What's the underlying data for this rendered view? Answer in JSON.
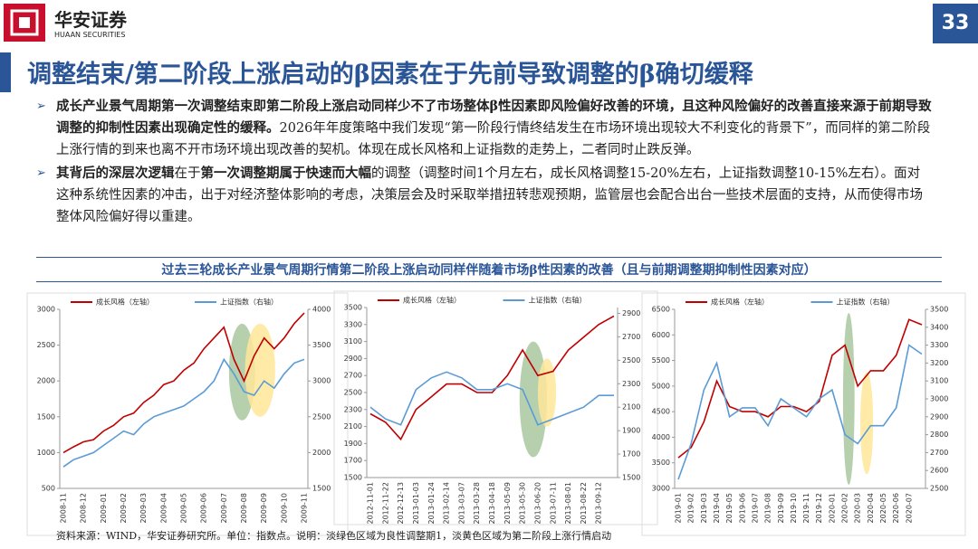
{
  "header": {
    "brand": "华安证券",
    "brand_en": "HUAAN SECURITIES",
    "page": "33"
  },
  "title": "调整结束/第二阶段上涨启动的β因素在于先前导致调整的β确切缓释",
  "bullets": [
    [
      {
        "text": "成长产业景气周期第一次调整结束即第二阶段上涨启动同样少不了市场整体β性因素即风险偏好改善的环境，且这种风险偏好的改善直接来源于前期导致调整的抑制性因素出现确定性的缓释。",
        "bold": true
      },
      {
        "text": "2026年年度策略中我们发现“第一阶段行情终结发生在市场环境出现较大不利变化的背景下”，而同样的第二阶段上涨行情的到来也离不开市场环境出现改善的契机。体现在成长风格和上证指数的走势上，二者同时止跌反弹。",
        "bold": false
      }
    ],
    [
      {
        "text": "其背后的深层次逻辑",
        "bold": true
      },
      {
        "text": "在于",
        "bold": false
      },
      {
        "text": "第一次调整期属于快速而大幅",
        "bold": true
      },
      {
        "text": "的调整（调整时间1个月左右，成长风格调整15-20%左右，上证指数调整10-15%左右）。面对这种系统性因素的冲击，出于对经济整体影响的考虑，决策层会及时采取举措扭转悲观预期，监管层也会配合出台一些技术层面的支持，从而使得市场整体风险偏好得以重建。",
        "bold": false
      }
    ]
  ],
  "caption": "过去三轮成长产业景气周期行情第二阶段上涨启动同样伴随着市场β性因素的改善（且与前期调整期抑制性因素对应）",
  "source": "资料来源：WIND，华安证券研究所。单位：指数点。说明：淡绿色区域为良性调整期1，淡黄色区域为第二阶段上涨行情启动",
  "chart_data": [
    {
      "type": "line",
      "categories": [
        "2008-11",
        null,
        "2008-12",
        null,
        "2009-01",
        null,
        "2009-02",
        null,
        "2009-03",
        null,
        "2009-04",
        null,
        "2009-05",
        null,
        "2009-06",
        null,
        "2009-07",
        null,
        "2009-08",
        null,
        "2009-09",
        null,
        "2009-10",
        null,
        "2009-11"
      ],
      "series": [
        {
          "name": "成长风格（左轴）",
          "color": "#c00000",
          "values": [
            1000,
            1080,
            1150,
            1180,
            1300,
            1380,
            1500,
            1550,
            1700,
            1800,
            1950,
            2000,
            2150,
            2250,
            2450,
            2600,
            2750,
            2300,
            2000,
            2350,
            2600,
            2450,
            2600,
            2800,
            2950
          ]
        },
        {
          "name": "上证指数（右轴）",
          "color": "#5b9bd5",
          "axis": "y2",
          "values": [
            1800,
            1900,
            1950,
            2000,
            2100,
            2200,
            2300,
            2250,
            2400,
            2500,
            2550,
            2600,
            2650,
            2750,
            2850,
            3000,
            3300,
            3100,
            2850,
            2800,
            3000,
            2900,
            3100,
            3250,
            3300
          ]
        }
      ],
      "ylim": [
        500,
        3000
      ],
      "yticks": [
        500,
        1000,
        1500,
        2000,
        2500,
        3000
      ],
      "y2lim": [
        1500,
        4000
      ],
      "y2ticks": [
        1500,
        2000,
        2500,
        3000,
        3500,
        4000
      ]
    },
    {
      "type": "line",
      "categories": [
        "2012-11-01",
        "2012-11-22",
        "2012-12-13",
        "2013-01-03",
        "2013-01-24",
        "2013-02-14",
        "2013-03-07",
        "2013-03-28",
        "2013-04-18",
        "2013-05-09",
        "2013-05-30",
        "2013-06-20",
        "2013-07-11",
        "2013-08-01",
        "2013-08-22",
        "2013-09-12",
        null
      ],
      "series": [
        {
          "name": "成长风格（左轴）",
          "color": "#c00000",
          "values": [
            2250,
            2150,
            1950,
            2300,
            2450,
            2600,
            2600,
            2500,
            2500,
            2700,
            3000,
            2700,
            2750,
            3000,
            3150,
            3300,
            3400
          ]
        },
        {
          "name": "上证指数（右轴）",
          "color": "#5b9bd5",
          "axis": "y2",
          "values": [
            2100,
            2000,
            1950,
            2250,
            2350,
            2400,
            2350,
            2250,
            2250,
            2300,
            2250,
            1950,
            2000,
            2050,
            2100,
            2200,
            2200
          ]
        }
      ],
      "ylim": [
        1500,
        3500
      ],
      "yticks": [
        1500,
        1700,
        1900,
        2100,
        2300,
        2500,
        2700,
        2900,
        3100,
        3300,
        3500
      ],
      "y2lim": [
        1500,
        2950
      ],
      "y2ticks": [
        1500,
        1700,
        1900,
        2100,
        2300,
        2500,
        2700,
        2900
      ]
    },
    {
      "type": "line",
      "categories": [
        "2019-01",
        "2019-02",
        "2019-03",
        "2019-04",
        "2019-05",
        "2019-06",
        "2019-07",
        "2019-08",
        "2019-09",
        "2019-10",
        "2019-11",
        "2019-12",
        "2020-01",
        "2020-02",
        "2020-03",
        "2020-04",
        "2020-05",
        "2020-06",
        "2020-07",
        null
      ],
      "series": [
        {
          "name": "成长风格（左轴）",
          "color": "#c00000",
          "values": [
            3600,
            3800,
            4300,
            5100,
            4600,
            4500,
            4500,
            4400,
            4600,
            4600,
            4500,
            4700,
            5600,
            5800,
            5000,
            5300,
            5300,
            5600,
            6300,
            6200
          ]
        },
        {
          "name": "上证指数（右轴）",
          "color": "#5b9bd5",
          "axis": "y2",
          "values": [
            2550,
            2750,
            3050,
            3200,
            2900,
            2950,
            2950,
            2850,
            3000,
            2950,
            2900,
            3000,
            3050,
            2800,
            2750,
            2850,
            2850,
            2950,
            3300,
            3250
          ]
        }
      ],
      "ylim": [
        3000,
        6500
      ],
      "yticks": [
        3000,
        3500,
        4000,
        4500,
        5000,
        5500,
        6000,
        6500
      ],
      "y2lim": [
        2500,
        3500
      ],
      "y2ticks": [
        2500,
        2600,
        2700,
        2800,
        2900,
        3000,
        3100,
        3200,
        3300,
        3400,
        3500
      ]
    }
  ]
}
